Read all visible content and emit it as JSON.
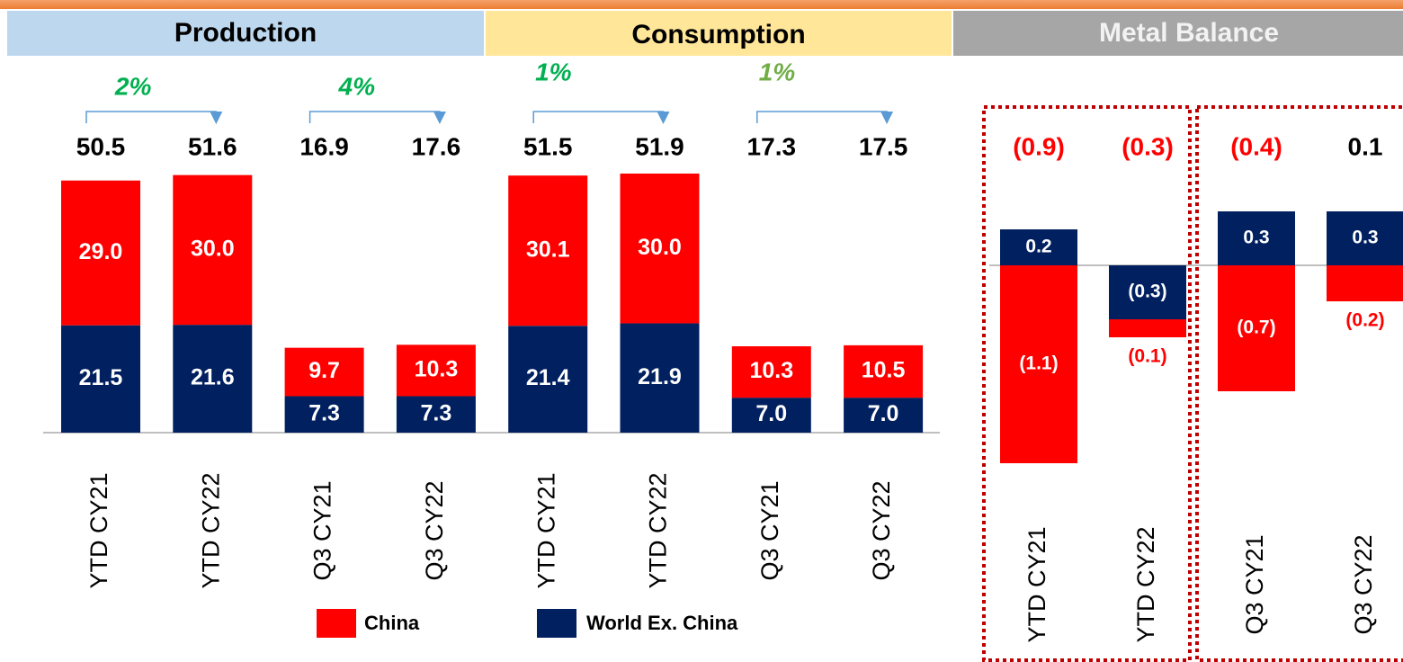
{
  "headers": [
    "Production",
    "Consumption",
    "Metal Balance"
  ],
  "chart_data": [
    {
      "type": "stacked_bar",
      "categories": [
        "YTD CY21",
        "YTD CY22",
        "Q3 CY21",
        "Q3 CY22",
        "YTD CY21",
        "YTD CY22",
        "Q3 CY21",
        "Q3 CY22"
      ],
      "series": [
        {
          "name": "China",
          "color": "#ff0000",
          "values": [
            29.0,
            30.0,
            9.7,
            10.3,
            30.1,
            30.0,
            10.3,
            10.5
          ],
          "value_labels": [
            "29.0",
            "30.0",
            "9.7",
            "10.3",
            "30.1",
            "30.0",
            "10.3",
            "10.5"
          ]
        },
        {
          "name": "World Ex. China",
          "color": "#002060",
          "values": [
            21.5,
            21.6,
            7.3,
            7.3,
            21.4,
            21.9,
            7.0,
            7.0
          ],
          "value_labels": [
            "21.5",
            "21.6",
            "7.3",
            "7.3",
            "21.4",
            "21.9",
            "7.0",
            "7.0"
          ]
        }
      ],
      "totals": [
        50.5,
        51.6,
        16.9,
        17.6,
        51.5,
        51.9,
        17.3,
        17.5
      ],
      "total_labels": [
        "50.5",
        "51.6",
        "16.9",
        "17.6",
        "51.5",
        "51.9",
        "17.3",
        "17.5"
      ],
      "growth": [
        2,
        4,
        1,
        1
      ],
      "growth_labels": [
        "2%",
        "4%",
        "1%",
        "1%"
      ],
      "growth_colors": [
        "#00b050",
        "#00b050",
        "#00b050",
        "#70ad47"
      ],
      "legend": "bottom"
    },
    {
      "type": "stacked_bar",
      "categories": [
        "YTD CY21",
        "YTD CY22",
        "Q3 CY21",
        "Q3 CY22"
      ],
      "series": [
        {
          "name": "China",
          "color": "#ff0000",
          "values": [
            -1.1,
            -0.1,
            -0.7,
            -0.2
          ],
          "value_labels": [
            "(1.1)",
            "(0.1)",
            "(0.7)",
            "(0.2)"
          ]
        },
        {
          "name": "World Ex. China",
          "color": "#002060",
          "values": [
            0.2,
            -0.3,
            0.3,
            0.3
          ],
          "value_labels": [
            "0.2",
            "(0.3)",
            "0.3",
            "0.3"
          ]
        }
      ],
      "totals": [
        -0.9,
        -0.3,
        -0.4,
        0.1
      ],
      "total_labels": [
        "(0.9)",
        "(0.3)",
        "(0.4)",
        "0.1"
      ]
    }
  ]
}
